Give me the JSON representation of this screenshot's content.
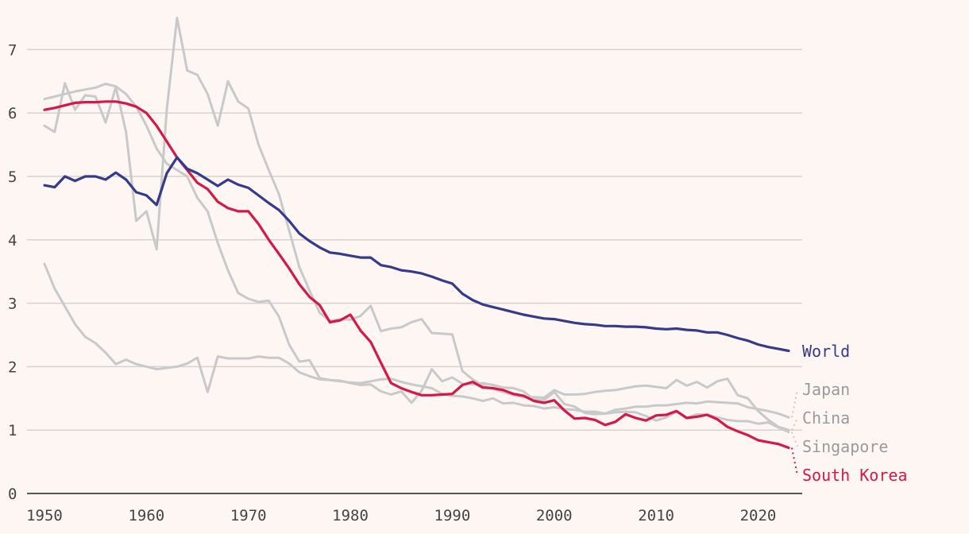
{
  "chart_data": {
    "type": "line",
    "title": "",
    "xlabel": "",
    "ylabel": "",
    "xlim": [
      1950,
      2025
    ],
    "ylim": [
      0,
      7.5
    ],
    "y_ticks": [
      0,
      1,
      2,
      3,
      4,
      5,
      6,
      7
    ],
    "x_ticks": [
      1950,
      1960,
      1970,
      1980,
      1990,
      2000,
      2010,
      2020
    ],
    "grid": true,
    "x": [
      1950,
      1951,
      1952,
      1953,
      1954,
      1955,
      1956,
      1957,
      1958,
      1959,
      1960,
      1961,
      1962,
      1963,
      1964,
      1965,
      1966,
      1967,
      1968,
      1969,
      1970,
      1971,
      1972,
      1973,
      1974,
      1975,
      1976,
      1977,
      1978,
      1979,
      1980,
      1981,
      1982,
      1983,
      1984,
      1985,
      1986,
      1987,
      1988,
      1989,
      1990,
      1991,
      1992,
      1993,
      1994,
      1995,
      1996,
      1997,
      1998,
      1999,
      2000,
      2001,
      2002,
      2003,
      2004,
      2005,
      2006,
      2007,
      2008,
      2009,
      2010,
      2011,
      2012,
      2013,
      2014,
      2015,
      2016,
      2017,
      2018,
      2019,
      2020,
      2021,
      2022,
      2023
    ],
    "series": [
      {
        "name": "China",
        "label": "China",
        "color": "#c9c9c9",
        "highlight": false,
        "values": [
          5.8,
          5.7,
          6.47,
          6.05,
          6.28,
          6.26,
          5.85,
          6.41,
          5.7,
          4.3,
          4.45,
          3.85,
          6.06,
          7.5,
          6.67,
          6.6,
          6.3,
          5.8,
          6.5,
          6.18,
          6.07,
          5.5,
          5.1,
          4.72,
          4.15,
          3.57,
          3.2,
          2.85,
          2.72,
          2.75,
          2.74,
          2.8,
          2.96,
          2.56,
          2.6,
          2.62,
          2.7,
          2.75,
          2.53,
          2.52,
          2.51,
          1.93,
          1.8,
          1.7,
          1.65,
          1.6,
          1.55,
          1.52,
          1.52,
          1.51,
          1.63,
          1.56,
          1.56,
          1.57,
          1.6,
          1.62,
          1.63,
          1.66,
          1.69,
          1.7,
          1.68,
          1.66,
          1.79,
          1.7,
          1.76,
          1.67,
          1.77,
          1.81,
          1.55,
          1.5,
          1.3,
          1.16,
          1.05,
          1.0
        ]
      },
      {
        "name": "Japan",
        "label": "Japan",
        "color": "#c9c9c9",
        "highlight": false,
        "values": [
          3.62,
          3.23,
          2.95,
          2.67,
          2.47,
          2.37,
          2.22,
          2.04,
          2.11,
          2.04,
          2.0,
          1.96,
          1.98,
          2.0,
          2.05,
          2.14,
          1.6,
          2.16,
          2.13,
          2.13,
          2.13,
          2.16,
          2.14,
          2.14,
          2.05,
          1.91,
          1.85,
          1.8,
          1.79,
          1.77,
          1.75,
          1.74,
          1.77,
          1.8,
          1.81,
          1.76,
          1.72,
          1.69,
          1.66,
          1.57,
          1.54,
          1.53,
          1.5,
          1.46,
          1.5,
          1.42,
          1.43,
          1.39,
          1.38,
          1.34,
          1.36,
          1.33,
          1.32,
          1.29,
          1.29,
          1.26,
          1.32,
          1.34,
          1.37,
          1.37,
          1.39,
          1.39,
          1.41,
          1.43,
          1.42,
          1.45,
          1.44,
          1.43,
          1.42,
          1.36,
          1.33,
          1.3,
          1.26,
          1.2
        ]
      },
      {
        "name": "Singapore",
        "label": "Singapore",
        "color": "#c9c9c9",
        "highlight": false,
        "values": [
          6.22,
          6.26,
          6.3,
          6.34,
          6.37,
          6.4,
          6.46,
          6.42,
          6.3,
          6.1,
          5.8,
          5.44,
          5.2,
          5.1,
          5.0,
          4.66,
          4.45,
          3.95,
          3.52,
          3.16,
          3.07,
          3.02,
          3.04,
          2.79,
          2.35,
          2.08,
          2.1,
          1.82,
          1.79,
          1.78,
          1.74,
          1.71,
          1.72,
          1.61,
          1.56,
          1.61,
          1.43,
          1.62,
          1.96,
          1.77,
          1.83,
          1.73,
          1.72,
          1.74,
          1.71,
          1.67,
          1.66,
          1.61,
          1.48,
          1.47,
          1.6,
          1.41,
          1.37,
          1.27,
          1.25,
          1.26,
          1.28,
          1.29,
          1.28,
          1.22,
          1.15,
          1.2,
          1.29,
          1.19,
          1.25,
          1.24,
          1.2,
          1.16,
          1.14,
          1.14,
          1.1,
          1.12,
          1.04,
          0.97
        ]
      },
      {
        "name": "South Korea",
        "label": "South Korea",
        "color": "#d6174a",
        "highlight": true,
        "values": [
          6.05,
          6.08,
          6.12,
          6.16,
          6.17,
          6.17,
          6.18,
          6.18,
          6.15,
          6.1,
          6.0,
          5.8,
          5.55,
          5.3,
          5.1,
          4.9,
          4.8,
          4.6,
          4.5,
          4.45,
          4.45,
          4.25,
          4.0,
          3.78,
          3.55,
          3.3,
          3.1,
          2.97,
          2.7,
          2.73,
          2.82,
          2.57,
          2.39,
          2.06,
          1.74,
          1.66,
          1.6,
          1.55,
          1.55,
          1.56,
          1.57,
          1.71,
          1.76,
          1.67,
          1.66,
          1.63,
          1.57,
          1.54,
          1.46,
          1.43,
          1.47,
          1.31,
          1.18,
          1.19,
          1.16,
          1.08,
          1.13,
          1.25,
          1.19,
          1.15,
          1.23,
          1.24,
          1.3,
          1.19,
          1.21,
          1.24,
          1.17,
          1.05,
          0.98,
          0.92,
          0.84,
          0.81,
          0.78,
          0.72
        ]
      },
      {
        "name": "World",
        "label": "World",
        "color": "#363a8a",
        "highlight": true,
        "values": [
          4.86,
          4.83,
          5.0,
          4.93,
          5.0,
          5.0,
          4.95,
          5.06,
          4.95,
          4.75,
          4.7,
          4.55,
          5.05,
          5.3,
          5.12,
          5.05,
          4.95,
          4.85,
          4.95,
          4.87,
          4.82,
          4.7,
          4.58,
          4.47,
          4.3,
          4.1,
          3.98,
          3.88,
          3.8,
          3.78,
          3.75,
          3.72,
          3.72,
          3.6,
          3.57,
          3.52,
          3.5,
          3.47,
          3.42,
          3.36,
          3.31,
          3.15,
          3.05,
          2.98,
          2.94,
          2.9,
          2.86,
          2.82,
          2.79,
          2.76,
          2.75,
          2.72,
          2.69,
          2.67,
          2.66,
          2.64,
          2.64,
          2.63,
          2.63,
          2.62,
          2.6,
          2.59,
          2.6,
          2.58,
          2.57,
          2.54,
          2.54,
          2.5,
          2.45,
          2.41,
          2.35,
          2.31,
          2.28,
          2.25
        ]
      }
    ]
  }
}
